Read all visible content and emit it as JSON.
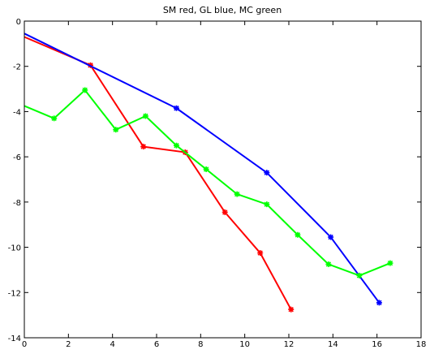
{
  "chart_data": {
    "type": "line",
    "title": "SM red, GL blue, MC green",
    "xlabel": "",
    "ylabel": "",
    "xlim": [
      0,
      18
    ],
    "ylim": [
      -14,
      0
    ],
    "xticks": [
      0,
      2,
      4,
      6,
      8,
      10,
      12,
      14,
      16,
      18
    ],
    "yticks": [
      0,
      -2,
      -4,
      -6,
      -8,
      -10,
      -12,
      -14
    ],
    "grid": false,
    "marker": "asterisk",
    "series": [
      {
        "color": "#ff0000",
        "x": [
          0.0,
          3.0,
          5.4,
          7.3,
          9.1,
          10.7,
          12.1
        ],
        "y": [
          -0.7,
          -1.95,
          -5.55,
          -5.8,
          -8.45,
          -10.25,
          -12.75
        ]
      },
      {
        "color": "#0000ff",
        "x": [
          0.0,
          6.9,
          11.0,
          13.9,
          16.1
        ],
        "y": [
          -0.55,
          -3.85,
          -6.7,
          -9.55,
          -12.45
        ]
      },
      {
        "color": "#00ff00",
        "x": [
          0.0,
          1.35,
          2.75,
          4.15,
          5.5,
          6.9,
          8.25,
          9.65,
          11.0,
          12.4,
          13.8,
          15.2,
          16.6
        ],
        "y": [
          -3.75,
          -4.3,
          -3.05,
          -4.8,
          -4.2,
          -5.5,
          -6.55,
          -7.65,
          -8.1,
          -9.45,
          -10.75,
          -11.25,
          -10.7
        ]
      }
    ]
  }
}
